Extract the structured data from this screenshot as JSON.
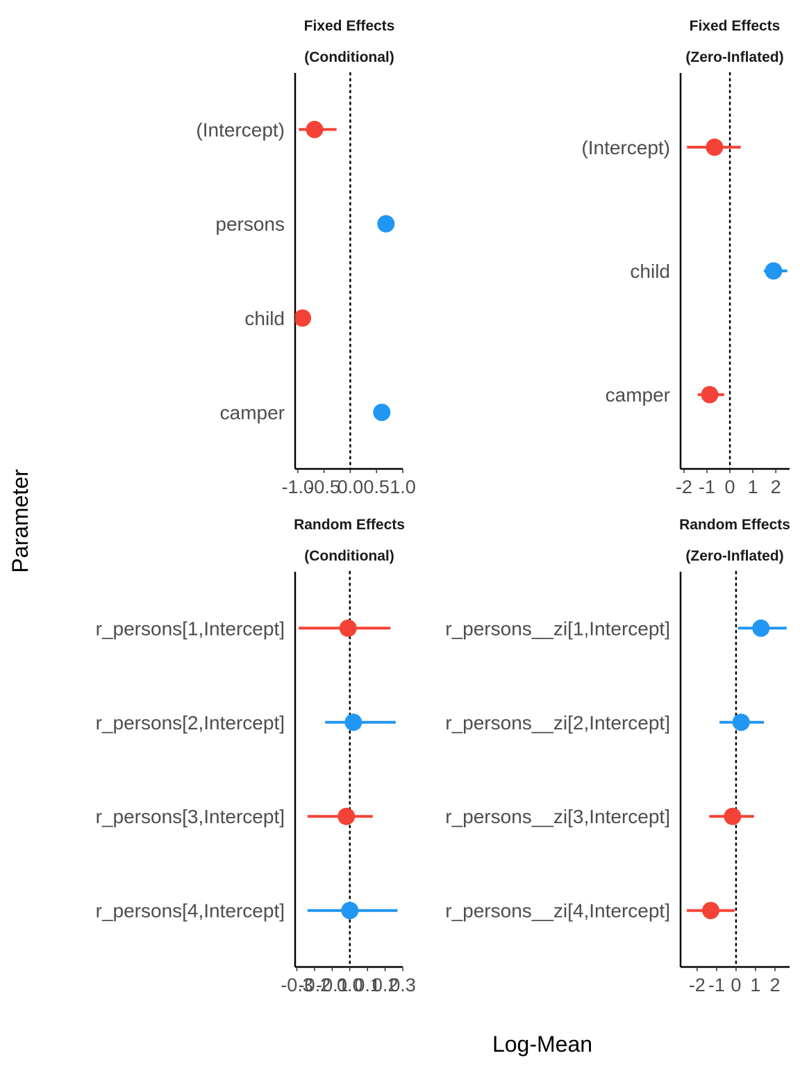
{
  "figure": {
    "xlabel": "Log-Mean",
    "ylabel": "Parameter"
  },
  "colors": {
    "negative": "#F44336",
    "positive": "#2196F3",
    "reference_line": "#000000",
    "axis_line": "#000000"
  },
  "chart_data": [
    {
      "type": "scatter",
      "subtype": "forest-plot",
      "title": [
        "Fixed Effects",
        "(Conditional)"
      ],
      "xlim": [
        -1.05,
        1.0
      ],
      "xticks": [
        -1.0,
        -0.5,
        0.0,
        0.5,
        1.0
      ],
      "xtick_labels": [
        "-1.0",
        "-0.5",
        "0.0",
        "0.5",
        "1.0"
      ],
      "reference_x": 0,
      "parameters": [
        {
          "label": "(Intercept)",
          "estimate": -0.68,
          "low": -0.98,
          "high": -0.26,
          "sign": "negative"
        },
        {
          "label": "persons",
          "estimate": 0.68,
          "low": 0.68,
          "high": 0.68,
          "sign": "positive"
        },
        {
          "label": "child",
          "estimate": -0.91,
          "low": -0.91,
          "high": -0.91,
          "sign": "negative"
        },
        {
          "label": "camper",
          "estimate": 0.6,
          "low": 0.6,
          "high": 0.6,
          "sign": "positive"
        }
      ]
    },
    {
      "type": "scatter",
      "subtype": "forest-plot",
      "title": [
        "Fixed Effects",
        "(Zero-Inflated)"
      ],
      "xlim": [
        -2.15,
        2.6
      ],
      "xticks": [
        -2,
        -1,
        0,
        1,
        2
      ],
      "xtick_labels": [
        "-2",
        "-1",
        "0",
        "1",
        "2"
      ],
      "reference_x": 0,
      "parameters": [
        {
          "label": "(Intercept)",
          "estimate": -0.67,
          "low": -1.87,
          "high": 0.47,
          "sign": "negative"
        },
        {
          "label": "child",
          "estimate": 1.9,
          "low": 1.48,
          "high": 2.5,
          "sign": "positive"
        },
        {
          "label": "camper",
          "estimate": -0.88,
          "low": -1.4,
          "high": -0.25,
          "sign": "negative"
        }
      ]
    },
    {
      "type": "scatter",
      "subtype": "forest-plot",
      "title": [
        "Random Effects",
        "(Conditional)"
      ],
      "xlim": [
        -0.31,
        0.3
      ],
      "xticks": [
        -0.3,
        -0.2,
        -0.1,
        0.0,
        0.1,
        0.2,
        0.3
      ],
      "xtick_labels": [
        "-0.3",
        "-0.2",
        "-0.1",
        "0.0",
        "0.1",
        "0.2",
        "0.3"
      ],
      "reference_x": 0,
      "parameters": [
        {
          "label": "r_persons[1,Intercept]",
          "estimate": -0.01,
          "low": -0.29,
          "high": 0.23,
          "sign": "negative"
        },
        {
          "label": "r_persons[2,Intercept]",
          "estimate": 0.02,
          "low": -0.14,
          "high": 0.26,
          "sign": "positive"
        },
        {
          "label": "r_persons[3,Intercept]",
          "estimate": -0.02,
          "low": -0.24,
          "high": 0.13,
          "sign": "negative"
        },
        {
          "label": "r_persons[4,Intercept]",
          "estimate": 0.0,
          "low": -0.24,
          "high": 0.27,
          "sign": "positive"
        }
      ]
    },
    {
      "type": "scatter",
      "subtype": "forest-plot",
      "title": [
        "Random Effects",
        "(Zero-Inflated)"
      ],
      "xlim": [
        -2.85,
        2.75
      ],
      "xticks": [
        -2,
        -1,
        0,
        1,
        2
      ],
      "xtick_labels": [
        "-2",
        "-1",
        "0",
        "1",
        "2"
      ],
      "reference_x": 0,
      "parameters": [
        {
          "label": "r_persons__zi[1,Intercept]",
          "estimate": 1.28,
          "low": 0.1,
          "high": 2.6,
          "sign": "positive"
        },
        {
          "label": "r_persons__zi[2,Intercept]",
          "estimate": 0.26,
          "low": -0.85,
          "high": 1.43,
          "sign": "positive"
        },
        {
          "label": "r_persons__zi[3,Intercept]",
          "estimate": -0.18,
          "low": -1.38,
          "high": 0.92,
          "sign": "negative"
        },
        {
          "label": "r_persons__zi[4,Intercept]",
          "estimate": -1.3,
          "low": -2.53,
          "high": -0.07,
          "sign": "negative"
        }
      ]
    }
  ]
}
